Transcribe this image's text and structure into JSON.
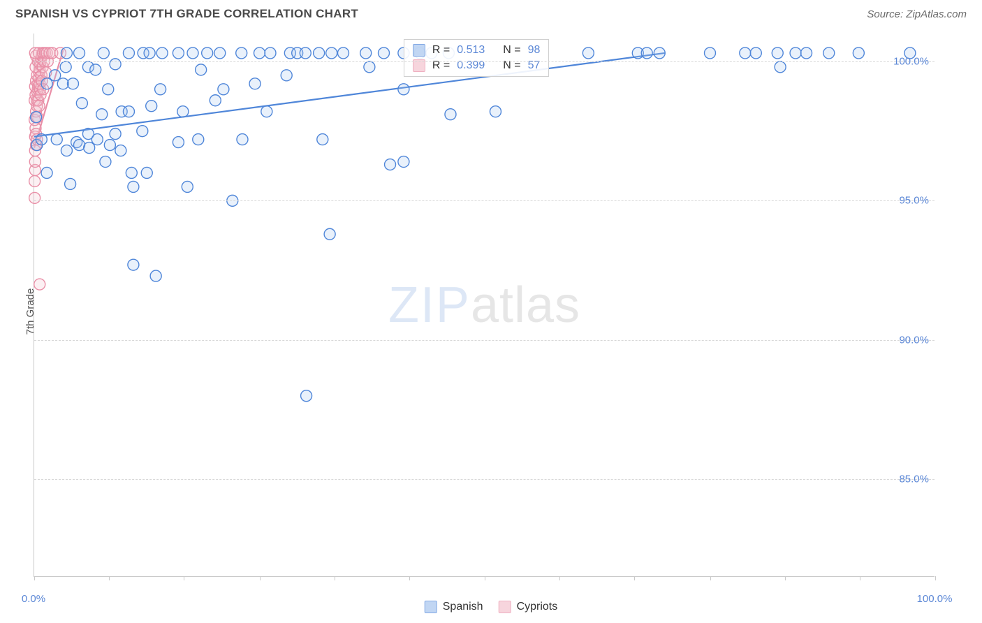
{
  "header": {
    "title": "SPANISH VS CYPRIOT 7TH GRADE CORRELATION CHART",
    "source_prefix": "Source: ",
    "source": "ZipAtlas.com"
  },
  "watermark": {
    "zip": "ZIP",
    "atlas": "atlas"
  },
  "chart": {
    "type": "scatter",
    "y_axis_label": "7th Grade",
    "background_color": "#ffffff",
    "grid_color": "#d8d8d8",
    "axis_color": "#c9c9c9",
    "label_color": "#5b87d6",
    "xlim": [
      0,
      100
    ],
    "ylim": [
      81.5,
      101.0
    ],
    "x_ticks_at": [
      0,
      8.3,
      16.6,
      25,
      33.3,
      41.6,
      50,
      58.3,
      66.6,
      75,
      83.3,
      91.6,
      100
    ],
    "x_tick_labels": [
      {
        "x": 0,
        "label": "0.0%"
      },
      {
        "x": 100,
        "label": "100.0%"
      }
    ],
    "y_tick_labels": [
      {
        "y": 85,
        "label": "85.0%"
      },
      {
        "y": 90,
        "label": "90.0%"
      },
      {
        "y": 95,
        "label": "95.0%"
      },
      {
        "y": 100,
        "label": "100.0%"
      }
    ],
    "marker_radius": 8,
    "marker_stroke_width": 1.4,
    "marker_fill_opacity": 0.25,
    "trend_line_width": 2.2,
    "series": {
      "spanish": {
        "label": "Spanish",
        "color_stroke": "#4f86d9",
        "color_fill": "#a8c6ef",
        "R_label": "R = ",
        "R": "0.513",
        "N_label": "N = ",
        "N": "98",
        "trend": {
          "x1": 0,
          "y1": 97.3,
          "x2": 70,
          "y2": 100.3
        },
        "points": [
          [
            0.2,
            98.0
          ],
          [
            0.3,
            97.0
          ],
          [
            0.8,
            97.2
          ],
          [
            1.4,
            99.2
          ],
          [
            1.4,
            96.0
          ],
          [
            2.3,
            99.5
          ],
          [
            2.5,
            97.2
          ],
          [
            3.2,
            99.2
          ],
          [
            3.5,
            99.8
          ],
          [
            3.6,
            100.3
          ],
          [
            3.6,
            96.8
          ],
          [
            4.0,
            95.6
          ],
          [
            4.3,
            99.2
          ],
          [
            4.7,
            97.1
          ],
          [
            5.0,
            100.3
          ],
          [
            5.3,
            98.5
          ],
          [
            5.0,
            97.0
          ],
          [
            6.0,
            97.4
          ],
          [
            6.0,
            99.8
          ],
          [
            6.1,
            96.9
          ],
          [
            6.8,
            99.7
          ],
          [
            7.0,
            97.2
          ],
          [
            7.5,
            98.1
          ],
          [
            7.7,
            100.3
          ],
          [
            7.9,
            96.4
          ],
          [
            8.2,
            99.0
          ],
          [
            8.4,
            97.0
          ],
          [
            9.0,
            99.9
          ],
          [
            9.0,
            97.4
          ],
          [
            9.7,
            98.2
          ],
          [
            9.6,
            96.8
          ],
          [
            10.5,
            100.3
          ],
          [
            10.5,
            98.2
          ],
          [
            10.8,
            96.0
          ],
          [
            11.0,
            95.5
          ],
          [
            11.0,
            92.7
          ],
          [
            12.1,
            100.3
          ],
          [
            12.0,
            97.5
          ],
          [
            12.5,
            96.0
          ],
          [
            13.0,
            98.4
          ],
          [
            12.8,
            100.3
          ],
          [
            13.5,
            92.3
          ],
          [
            14.0,
            99.0
          ],
          [
            14.2,
            100.3
          ],
          [
            16.0,
            100.3
          ],
          [
            16.0,
            97.1
          ],
          [
            16.5,
            98.2
          ],
          [
            17.0,
            95.5
          ],
          [
            17.6,
            100.3
          ],
          [
            18.2,
            97.2
          ],
          [
            18.5,
            99.7
          ],
          [
            19.2,
            100.3
          ],
          [
            20.1,
            98.6
          ],
          [
            20.6,
            100.3
          ],
          [
            21.0,
            99.0
          ],
          [
            22.0,
            95.0
          ],
          [
            23.0,
            100.3
          ],
          [
            23.1,
            97.2
          ],
          [
            24.5,
            99.2
          ],
          [
            25.0,
            100.3
          ],
          [
            25.8,
            98.2
          ],
          [
            26.2,
            100.3
          ],
          [
            28.0,
            99.5
          ],
          [
            28.4,
            100.3
          ],
          [
            29.2,
            100.3
          ],
          [
            30.1,
            100.3
          ],
          [
            30.2,
            88.0
          ],
          [
            31.6,
            100.3
          ],
          [
            32.0,
            97.2
          ],
          [
            33.0,
            100.3
          ],
          [
            32.8,
            93.8
          ],
          [
            34.3,
            100.3
          ],
          [
            36.8,
            100.3
          ],
          [
            37.2,
            99.8
          ],
          [
            38.8,
            100.3
          ],
          [
            39.5,
            96.3
          ],
          [
            41.0,
            100.3
          ],
          [
            41.0,
            99.0
          ],
          [
            41.0,
            96.4
          ],
          [
            42.8,
            100.3
          ],
          [
            44.1,
            100.3
          ],
          [
            46.0,
            100.3
          ],
          [
            46.2,
            98.1
          ],
          [
            51.2,
            98.2
          ],
          [
            61.5,
            100.3
          ],
          [
            67.0,
            100.3
          ],
          [
            68.0,
            100.3
          ],
          [
            69.4,
            100.3
          ],
          [
            75.0,
            100.3
          ],
          [
            78.9,
            100.3
          ],
          [
            80.1,
            100.3
          ],
          [
            82.5,
            100.3
          ],
          [
            82.8,
            99.8
          ],
          [
            84.5,
            100.3
          ],
          [
            85.7,
            100.3
          ],
          [
            88.2,
            100.3
          ],
          [
            91.5,
            100.3
          ],
          [
            97.2,
            100.3
          ]
        ]
      },
      "cypriots": {
        "label": "Cypriots",
        "color_stroke": "#e98fa7",
        "color_fill": "#f5c4d0",
        "R_label": "R = ",
        "R": "0.399",
        "N_label": "N = ",
        "N": "57",
        "trend": {
          "x1": 0.0,
          "y1": 96.9,
          "x2": 3.2,
          "y2": 100.4
        },
        "points": [
          [
            0.05,
            95.1
          ],
          [
            0.05,
            95.7
          ],
          [
            0.1,
            96.1
          ],
          [
            0.1,
            96.4
          ],
          [
            0.1,
            96.8
          ],
          [
            0.2,
            97.0
          ],
          [
            0.1,
            97.3
          ],
          [
            0.15,
            97.6
          ],
          [
            0.05,
            97.9
          ],
          [
            0.2,
            97.4
          ],
          [
            0.2,
            98.0
          ],
          [
            0.2,
            98.2
          ],
          [
            0.3,
            97.2
          ],
          [
            0.3,
            98.4
          ],
          [
            0.05,
            98.6
          ],
          [
            0.3,
            98.6
          ],
          [
            0.35,
            98.0
          ],
          [
            0.15,
            98.8
          ],
          [
            0.35,
            98.9
          ],
          [
            0.4,
            99.0
          ],
          [
            0.1,
            99.1
          ],
          [
            0.4,
            99.2
          ],
          [
            0.45,
            98.6
          ],
          [
            0.2,
            99.3
          ],
          [
            0.5,
            99.4
          ],
          [
            0.45,
            99.1
          ],
          [
            0.55,
            98.4
          ],
          [
            0.3,
            99.5
          ],
          [
            0.55,
            99.6
          ],
          [
            0.6,
            99.7
          ],
          [
            0.15,
            99.8
          ],
          [
            0.65,
            99.0
          ],
          [
            0.6,
            99.2
          ],
          [
            0.65,
            99.9
          ],
          [
            0.7,
            100.0
          ],
          [
            0.4,
            100.0
          ],
          [
            0.7,
            98.8
          ],
          [
            0.75,
            100.1
          ],
          [
            0.8,
            99.5
          ],
          [
            0.2,
            100.2
          ],
          [
            0.85,
            100.2
          ],
          [
            0.85,
            99.3
          ],
          [
            0.9,
            100.3
          ],
          [
            0.5,
            100.3
          ],
          [
            0.95,
            99.8
          ],
          [
            0.1,
            100.3
          ],
          [
            1.0,
            100.3
          ],
          [
            1.0,
            99.0
          ],
          [
            1.1,
            100.0
          ],
          [
            1.2,
            100.3
          ],
          [
            1.3,
            99.6
          ],
          [
            1.4,
            100.3
          ],
          [
            1.5,
            100.0
          ],
          [
            1.7,
            100.3
          ],
          [
            2.0,
            100.3
          ],
          [
            2.9,
            100.3
          ],
          [
            0.6,
            92.0
          ]
        ]
      }
    },
    "stats_box": {
      "left_pct": 41.0,
      "top_y": 100.8
    }
  }
}
